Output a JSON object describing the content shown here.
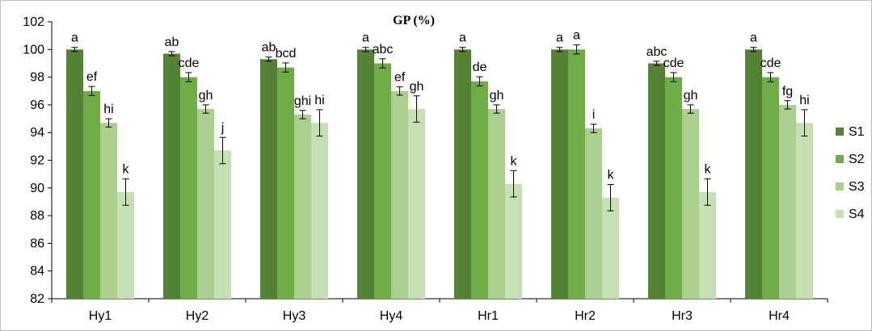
{
  "chart_data": {
    "type": "bar",
    "title": "GP (%)",
    "xlabel": "",
    "ylabel": "",
    "ylim": [
      82,
      102
    ],
    "yticks": [
      82,
      84,
      86,
      88,
      90,
      92,
      94,
      96,
      98,
      100,
      102
    ],
    "grid": false,
    "legend_position": "right",
    "error_bars": true,
    "categories": [
      "Hy1",
      "Hy2",
      "Hy3",
      "Hy4",
      "Hr1",
      "Hr2",
      "Hr3",
      "Hr4"
    ],
    "series": [
      {
        "name": "S1",
        "color": "#548235",
        "values": [
          100.0,
          99.7,
          99.3,
          100.0,
          100.0,
          100.0,
          99.0,
          100.0
        ],
        "errors": [
          0.15,
          0.15,
          0.15,
          0.15,
          0.15,
          0.15,
          0.15,
          0.15
        ],
        "letters": [
          "a",
          "ab",
          "ab",
          "a",
          "a",
          "a",
          "abc",
          "a"
        ]
      },
      {
        "name": "S2",
        "color": "#70ad47",
        "values": [
          97.0,
          98.0,
          98.7,
          99.0,
          97.7,
          100.0,
          98.0,
          98.0
        ],
        "errors": [
          0.33,
          0.33,
          0.33,
          0.33,
          0.33,
          0.33,
          0.33,
          0.33
        ],
        "letters": [
          "ef",
          "cde",
          "bcd",
          "abc",
          "de",
          "a",
          "cde",
          "cde"
        ]
      },
      {
        "name": "S3",
        "color": "#a9d08e",
        "values": [
          94.7,
          95.7,
          95.3,
          97.0,
          95.7,
          94.3,
          95.7,
          96.0
        ],
        "errors": [
          0.3,
          0.3,
          0.3,
          0.3,
          0.3,
          0.3,
          0.3,
          0.3
        ],
        "letters": [
          "hi",
          "gh",
          "ghi",
          "ef",
          "gh",
          "i",
          "gh",
          "fg"
        ]
      },
      {
        "name": "S4",
        "color": "#c6e0b4",
        "values": [
          89.7,
          92.7,
          94.7,
          95.7,
          90.3,
          89.3,
          89.7,
          94.7
        ],
        "errors": [
          0.95,
          0.95,
          0.95,
          0.95,
          0.95,
          0.95,
          0.95,
          0.95
        ],
        "letters": [
          "k",
          "j",
          "hi",
          "gh",
          "k",
          "k",
          "k",
          "hi"
        ]
      }
    ]
  }
}
